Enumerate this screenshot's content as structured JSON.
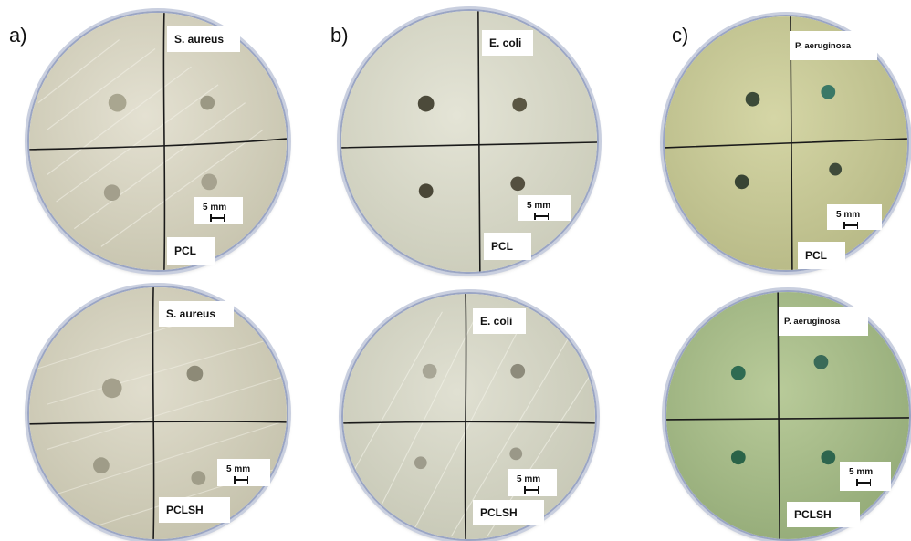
{
  "panels": [
    {
      "letter": "a)",
      "plates": [
        {
          "bacterium": "S. aureus",
          "material": "PCL",
          "scale": "5 mm"
        },
        {
          "bacterium": "S. aureus",
          "material": "PCLSH",
          "scale": "5 mm"
        }
      ]
    },
    {
      "letter": "b)",
      "plates": [
        {
          "bacterium": "E. coli",
          "material": "PCL",
          "scale": "5 mm"
        },
        {
          "bacterium": "E. coli",
          "material": "PCLSH",
          "scale": "5 mm"
        }
      ]
    },
    {
      "letter": "c)",
      "plates": [
        {
          "bacterium": "P. aeruginosa",
          "material": "PCL",
          "scale": "5 mm"
        },
        {
          "bacterium": "P. aeruginosa",
          "material": "PCLSH",
          "scale": "5 mm"
        }
      ]
    }
  ],
  "colors": {
    "plate_a": "#d9d6c4",
    "plate_b": "#dcdccc",
    "plate_c_top": "#c9cb96",
    "plate_c_bottom": "#a9bf8c",
    "disk_dark": "#4e4a3c",
    "disk_green": "#2f6b52",
    "disk_light": "#9e9b8c"
  }
}
